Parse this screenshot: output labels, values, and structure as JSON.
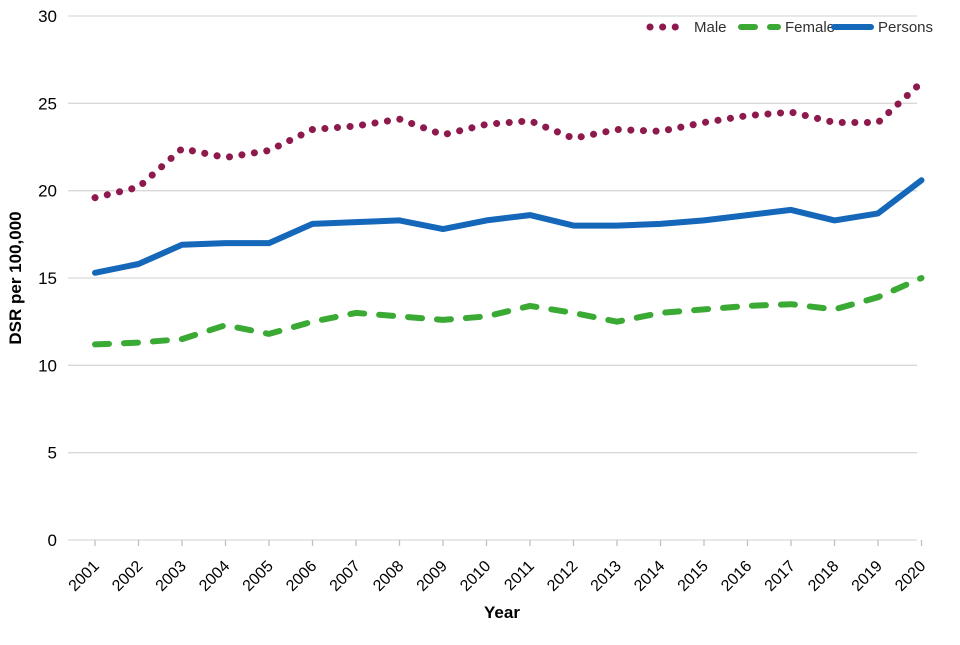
{
  "chart": {
    "background": "#ffffff",
    "legend": [
      {
        "label": "Male",
        "style": "dotted",
        "color": "#8e1a4d"
      },
      {
        "label": "Female",
        "style": "dashed",
        "color": "#3aaa35"
      },
      {
        "label": "Persons",
        "style": "solid",
        "color": "#1467b9"
      }
    ]
  },
  "colors": {
    "grid": "#d9d9d9",
    "axis": "#d9d9d9",
    "tick": "#bfbfbf",
    "text": "#000000",
    "legend_text": "#303030"
  },
  "chart_data": {
    "type": "line",
    "title": "",
    "xlabel": "Year",
    "ylabel": "DSR per 100,000",
    "x": [
      2001,
      2002,
      2003,
      2004,
      2005,
      2006,
      2007,
      2008,
      2009,
      2010,
      2011,
      2012,
      2013,
      2014,
      2015,
      2016,
      2017,
      2018,
      2019,
      2020
    ],
    "ylim": [
      0,
      30
    ],
    "yticks": [
      0,
      5,
      10,
      15,
      20,
      25,
      30
    ],
    "grid": true,
    "legend_position": "top-right",
    "series": [
      {
        "name": "Male",
        "style": "dotted",
        "color": "#8e1a4d",
        "values": [
          19.6,
          20.2,
          22.4,
          21.9,
          22.3,
          23.5,
          23.7,
          24.1,
          23.2,
          23.8,
          24.0,
          23.0,
          23.5,
          23.4,
          23.9,
          24.3,
          24.5,
          23.9,
          23.9,
          26.2
        ]
      },
      {
        "name": "Female",
        "style": "dashed",
        "color": "#3aaa35",
        "values": [
          11.2,
          11.3,
          11.5,
          12.3,
          11.8,
          12.5,
          13.0,
          12.8,
          12.6,
          12.8,
          13.4,
          13.0,
          12.5,
          13.0,
          13.2,
          13.4,
          13.5,
          13.2,
          13.9,
          15.0
        ]
      },
      {
        "name": "Persons",
        "style": "solid",
        "color": "#1467b9",
        "values": [
          15.3,
          15.8,
          16.9,
          17.0,
          17.0,
          18.1,
          18.2,
          18.3,
          17.8,
          18.3,
          18.6,
          18.0,
          18.0,
          18.1,
          18.3,
          18.6,
          18.9,
          18.3,
          18.7,
          20.6
        ]
      }
    ]
  }
}
